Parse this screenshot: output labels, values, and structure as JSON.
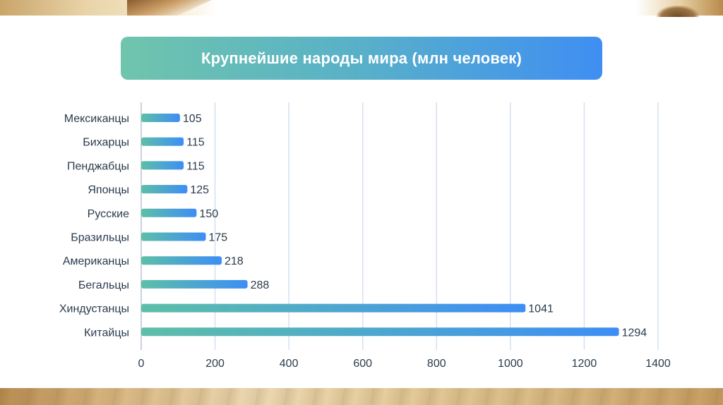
{
  "chart_data": {
    "type": "bar",
    "orientation": "horizontal",
    "title": "Крупнейшие народы мира (млн человек)",
    "categories": [
      "Мексиканцы",
      "Бихарцы",
      "Пенджабцы",
      "Японцы",
      "Русские",
      "Бразильцы",
      "Американцы",
      "Бегальцы",
      "Хиндустанцы",
      "Китайцы"
    ],
    "values": [
      105,
      115,
      115,
      125,
      150,
      175,
      218,
      288,
      1041,
      1294
    ],
    "value_labels": [
      "105",
      "115",
      "115",
      "125",
      "150",
      "175",
      "218",
      "288",
      "1041",
      "1294"
    ],
    "x_ticks": [
      "0",
      "200",
      "400",
      "600",
      "800",
      "1000",
      "1200",
      "1400"
    ],
    "xlim": [
      0,
      1400
    ],
    "xlabel": "",
    "ylabel": "",
    "grid": "vertical",
    "legend": "none",
    "colors": {
      "bar_start": "#5dbfa8",
      "bar_end": "#3d8ef5",
      "grid": "#d6e0ef",
      "text": "#2a3b4c"
    }
  }
}
